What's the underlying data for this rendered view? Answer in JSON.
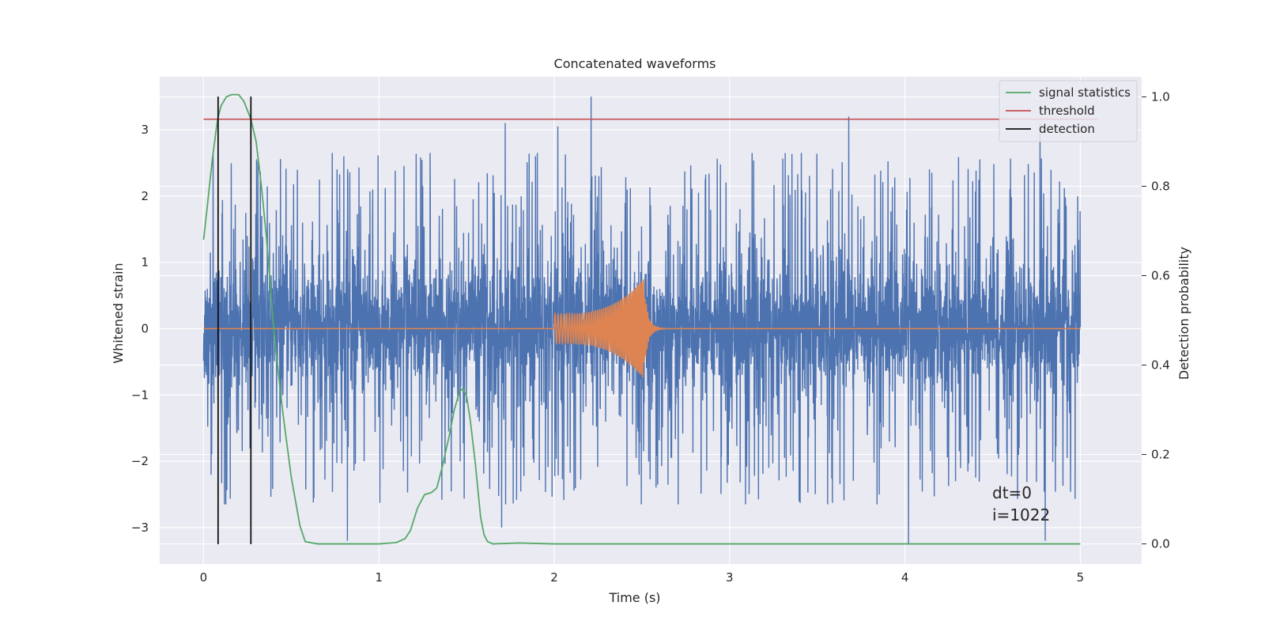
{
  "chart_data": {
    "type": "line",
    "title": "Concatenated waveforms",
    "xlabel": "Time (s)",
    "ylabel": "Whitened strain",
    "y2label": "Detection probability",
    "xlim": [
      -0.25,
      5.35
    ],
    "ylim": [
      -3.55,
      3.8
    ],
    "y2lim": [
      -0.045,
      1.045
    ],
    "x_ticks": [
      0,
      1,
      2,
      3,
      4,
      5
    ],
    "y_ticks": [
      -3,
      -2,
      -1,
      0,
      1,
      2,
      3
    ],
    "y2_ticks": [
      0.0,
      0.2,
      0.4,
      0.6,
      0.8,
      1.0
    ],
    "x_tick_labels": [
      "0",
      "1",
      "2",
      "3",
      "4",
      "5"
    ],
    "y_tick_labels": [
      "−3",
      "−2",
      "−1",
      "0",
      "1",
      "2",
      "3"
    ],
    "y2_tick_labels": [
      "0.0",
      "0.2",
      "0.4",
      "0.6",
      "0.8",
      "1.0"
    ],
    "grid": true,
    "legend_position": "top-right",
    "series": [
      {
        "kind": "noisy_strain",
        "axis": "left",
        "color": "#4c72b0",
        "x_range": [
          0,
          5
        ],
        "core_amplitude": 0.55,
        "typical_peak_range": [
          -2.6,
          2.6
        ],
        "extremes": [
          {
            "x": 2.21,
            "y": 3.5
          },
          {
            "x": 3.68,
            "y": 3.2
          },
          {
            "x": 1.72,
            "y": 3.1
          },
          {
            "x": 2.02,
            "y": 3.05
          },
          {
            "x": 4.77,
            "y": 3.1
          },
          {
            "x": 0.82,
            "y": -3.2
          },
          {
            "x": 4.02,
            "y": -3.25
          },
          {
            "x": 4.8,
            "y": -3.2
          },
          {
            "x": 1.7,
            "y": -3.0
          }
        ]
      },
      {
        "kind": "injected_chirp",
        "axis": "left",
        "color": "#dd8452",
        "x_range": [
          0,
          5
        ],
        "chirp_start": 2.0,
        "chirp_merger": 2.51,
        "start_amplitude": 0.22,
        "peak_amplitude": 0.75,
        "ringdown_end": 2.9
      },
      {
        "name": "signal statistics",
        "axis": "right",
        "color": "#55a868",
        "x": [
          0,
          0.02,
          0.05,
          0.08,
          0.1,
          0.13,
          0.16,
          0.2,
          0.23,
          0.25,
          0.27,
          0.3,
          0.33,
          0.36,
          0.4,
          0.45,
          0.5,
          0.55,
          0.58,
          0.65,
          1.0,
          1.1,
          1.15,
          1.18,
          1.22,
          1.26,
          1.3,
          1.33,
          1.36,
          1.4,
          1.43,
          1.46,
          1.48,
          1.5,
          1.52,
          1.55,
          1.58,
          1.6,
          1.62,
          1.65,
          1.8,
          2.0,
          4.0,
          5.0
        ],
        "y": [
          0.68,
          0.75,
          0.86,
          0.95,
          0.98,
          1.0,
          1.005,
          1.005,
          0.99,
          0.97,
          0.95,
          0.9,
          0.8,
          0.68,
          0.48,
          0.3,
          0.15,
          0.04,
          0.005,
          0.0,
          0.0,
          0.003,
          0.012,
          0.03,
          0.08,
          0.11,
          0.115,
          0.125,
          0.17,
          0.24,
          0.3,
          0.34,
          0.348,
          0.33,
          0.28,
          0.18,
          0.06,
          0.02,
          0.005,
          0.0,
          0.002,
          0.0,
          0.0,
          0.0
        ]
      },
      {
        "name": "threshold",
        "axis": "left",
        "color": "#c44e52",
        "x": [
          0,
          5.1
        ],
        "y": [
          3.16,
          3.16
        ]
      },
      {
        "name": "detection",
        "axis": "left",
        "color": "#111111",
        "vlines": [
          0.083,
          0.27
        ],
        "ymin": -3.25,
        "ymax": 3.5
      }
    ],
    "annotations": {
      "dt": "dt=0",
      "i": "i=1022"
    }
  }
}
